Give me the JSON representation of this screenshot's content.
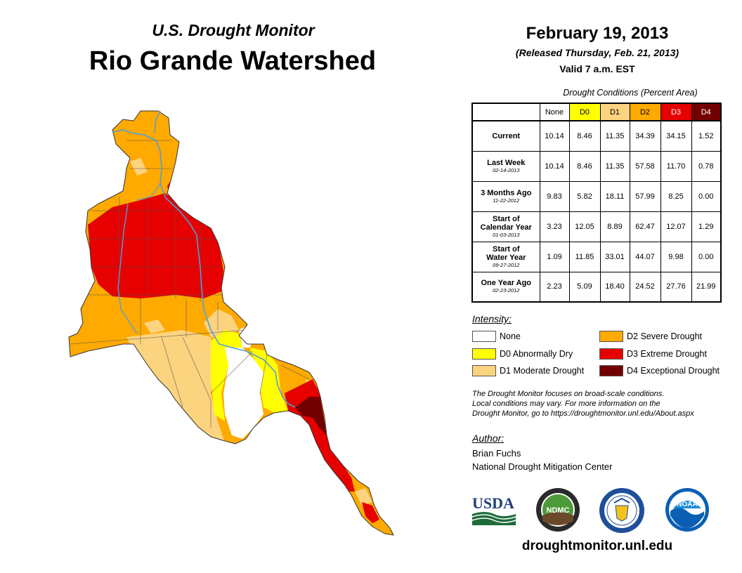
{
  "header": {
    "subtitle": "U.S. Drought Monitor",
    "title": "Rio Grande Watershed",
    "date": "February 19, 2013",
    "released": "(Released Thursday, Feb. 21, 2013)",
    "valid": "Valid 7 a.m. EST"
  },
  "table": {
    "caption": "Drought Conditions (Percent Area)",
    "columns": [
      {
        "label": "None",
        "color": "#ffffff"
      },
      {
        "label": "D0",
        "color": "#ffff00"
      },
      {
        "label": "D1",
        "color": "#fcd37f"
      },
      {
        "label": "D2",
        "color": "#ffaa00"
      },
      {
        "label": "D3",
        "color": "#e60000"
      },
      {
        "label": "D4",
        "color": "#730000"
      }
    ],
    "rows": [
      {
        "label": "Current",
        "label2": "",
        "date": "",
        "values": [
          "10.14",
          "8.46",
          "11.35",
          "34.39",
          "34.15",
          "1.52"
        ]
      },
      {
        "label": "Last Week",
        "label2": "",
        "date": "02-14-2013",
        "values": [
          "10.14",
          "8.46",
          "11.35",
          "57.58",
          "11.70",
          "0.78"
        ]
      },
      {
        "label": "3 Months Ago",
        "label2": "",
        "date": "11-22-2012",
        "values": [
          "9.83",
          "5.82",
          "18.11",
          "57.99",
          "8.25",
          "0.00"
        ]
      },
      {
        "label": "Start of",
        "label2": "Calendar Year",
        "date": "01-03-2013",
        "values": [
          "3.23",
          "12.05",
          "8.89",
          "62.47",
          "12.07",
          "1.29"
        ]
      },
      {
        "label": "Start of",
        "label2": "Water Year",
        "date": "09-27-2012",
        "values": [
          "1.09",
          "11.85",
          "33.01",
          "44.07",
          "9.98",
          "0.00"
        ]
      },
      {
        "label": "One Year Ago",
        "label2": "",
        "date": "02-23-2012",
        "values": [
          "2.23",
          "5.09",
          "18.40",
          "24.52",
          "27.76",
          "21.99"
        ]
      }
    ]
  },
  "legend": {
    "title": "Intensity:",
    "items": [
      {
        "label": "None",
        "color": "#ffffff"
      },
      {
        "label": "D0 Abnormally Dry",
        "color": "#ffff00"
      },
      {
        "label": "D1 Moderate Drought",
        "color": "#fcd37f"
      },
      {
        "label": "D2 Severe Drought",
        "color": "#ffaa00"
      },
      {
        "label": "D3 Extreme Drought",
        "color": "#e60000"
      },
      {
        "label": "D4 Exceptional Drought",
        "color": "#730000"
      }
    ]
  },
  "note": {
    "line1": "The Drought Monitor focuses on broad-scale conditions.",
    "line2": "Local conditions may vary. For more information on the",
    "line3": "Drought Monitor, go to https://droughtmonitor.unl.edu/About.aspx"
  },
  "author": {
    "title": "Author:",
    "name": "Brian Fuchs",
    "org": "National Drought Mitigation Center"
  },
  "logos": {
    "usda": "USDA",
    "ndmc": "NDMC",
    "noaa": "NOAA"
  },
  "footer": {
    "url": "droughtmonitor.unl.edu"
  },
  "colors": {
    "none": "#ffffff",
    "d0": "#ffff00",
    "d1": "#fcd37f",
    "d2": "#ffaa00",
    "d3": "#e60000",
    "d4": "#730000",
    "river": "#4f9fd8"
  }
}
